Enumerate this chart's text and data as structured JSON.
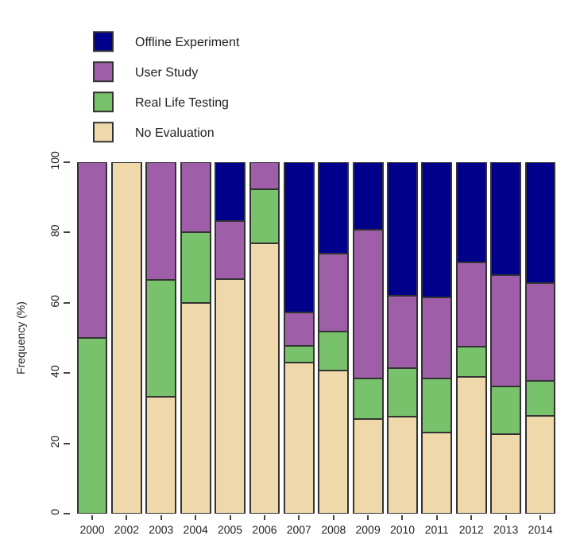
{
  "chart_data": {
    "type": "bar",
    "stacked": true,
    "ylabel": "Frequency (%)",
    "categories": [
      "2000",
      "2002",
      "2003",
      "2004",
      "2005",
      "2006",
      "2007",
      "2008",
      "2009",
      "2010",
      "2011",
      "2012",
      "2013",
      "2014"
    ],
    "series": [
      {
        "name": "No Evaluation",
        "color": "#efd9aa",
        "values": [
          0,
          100,
          33.3,
          60,
          66.7,
          76.9,
          42.9,
          40.7,
          26.9,
          27.6,
          23.1,
          38.9,
          22.6,
          27.9
        ]
      },
      {
        "name": "Real Life Testing",
        "color": "#77c26a",
        "values": [
          50,
          0,
          33.3,
          20,
          0,
          15.4,
          4.8,
          11.1,
          11.5,
          13.8,
          15.4,
          8.7,
          13.5,
          9.9
        ]
      },
      {
        "name": "User Study",
        "color": "#9e5fa8",
        "values": [
          50,
          0,
          33.4,
          20,
          16.6,
          7.7,
          9.5,
          22.2,
          42.3,
          20.7,
          23.1,
          23.9,
          31.8,
          27.8
        ]
      },
      {
        "name": "Offline Experiment",
        "color": "#00008b",
        "values": [
          0,
          0,
          0,
          0,
          16.7,
          0,
          42.8,
          26.0,
          19.3,
          37.9,
          38.4,
          28.5,
          32.1,
          34.4
        ]
      }
    ],
    "ylim": [
      0,
      100
    ],
    "yticks": [
      0,
      20,
      40,
      60,
      80,
      100
    ],
    "legend": "top left"
  }
}
